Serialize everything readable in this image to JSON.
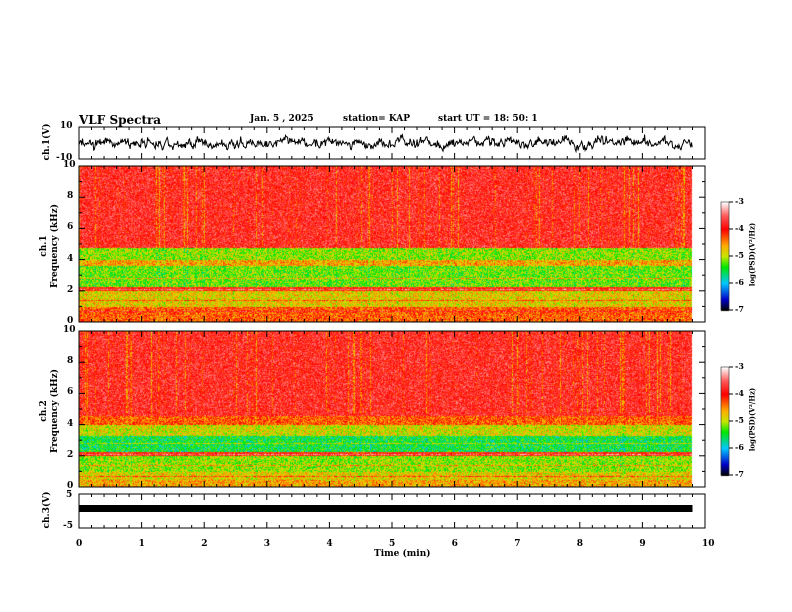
{
  "header": {
    "title": "VLF Spectra",
    "date": "Jan. 5 , 2025",
    "station": "station= KAP",
    "start": "start  UT =   18: 50: 1"
  },
  "colors": {
    "waveform": "#000000",
    "axis": "#000000"
  },
  "chart_data": [
    {
      "type": "line",
      "name": "ch1 waveform",
      "ylabel": "ch.1(V)",
      "ylim": [
        -10,
        10
      ],
      "yticks": [
        "10",
        "-10"
      ],
      "xlim": [
        0,
        10
      ],
      "data_end_min": 9.8,
      "description_values": "noisy signal centred near 2 V, amplitude about ±5 V"
    },
    {
      "type": "heatmap",
      "name": "ch1 spectrogram",
      "ylabel": "ch.1\nFrequency (kHz)",
      "ylim": [
        0,
        10
      ],
      "yticks": [
        "0",
        "2",
        "4",
        "6",
        "8",
        "10"
      ],
      "xlim": [
        0,
        10
      ],
      "colorbar": {
        "label": "log(PSD)(V²/Hz)",
        "range": [
          -7,
          -3
        ],
        "ticks": [
          "-3",
          "-4",
          "-5",
          "-6",
          "-7"
        ]
      },
      "bands": [
        {
          "f": [
            0,
            0.5
          ],
          "level": -4.3
        },
        {
          "f": [
            0.5,
            1
          ],
          "level": -4.3
        },
        {
          "f": [
            1,
            2
          ],
          "level": -4.8
        },
        {
          "f": [
            2,
            2.3
          ],
          "level": -4.0
        },
        {
          "f": [
            2.3,
            3.6
          ],
          "level": -5.2
        },
        {
          "f": [
            3.6,
            4.0
          ],
          "level": -4.6
        },
        {
          "f": [
            4.0,
            4.8
          ],
          "level": -5.1
        },
        {
          "f": [
            4.8,
            10
          ],
          "level": -3.8
        }
      ]
    },
    {
      "type": "heatmap",
      "name": "ch2 spectrogram",
      "ylabel": "ch.2\nFrequency (kHz)",
      "ylim": [
        0,
        10
      ],
      "yticks": [
        "0",
        "2",
        "4",
        "6",
        "8",
        "10"
      ],
      "xlim": [
        0,
        10
      ],
      "colorbar": {
        "label": "log(PSD)(V²/Hz)",
        "range": [
          -7,
          -3
        ],
        "ticks": [
          "-3",
          "-4",
          "-5",
          "-6",
          "-7"
        ]
      },
      "bands": [
        {
          "f": [
            0,
            0.5
          ],
          "level": -4.6
        },
        {
          "f": [
            0.5,
            1
          ],
          "level": -4.8
        },
        {
          "f": [
            1,
            2
          ],
          "level": -5.1
        },
        {
          "f": [
            2,
            2.3
          ],
          "level": -4.0
        },
        {
          "f": [
            2.3,
            3.3
          ],
          "level": -5.5
        },
        {
          "f": [
            3.3,
            4.0
          ],
          "level": -4.9
        },
        {
          "f": [
            4.0,
            4.6
          ],
          "level": -4.3
        },
        {
          "f": [
            4.6,
            10
          ],
          "level": -3.8
        }
      ]
    },
    {
      "type": "line",
      "name": "ch3 waveform",
      "ylabel": "ch.3(V)",
      "ylim": [
        -5,
        5
      ],
      "yticks": [
        "5",
        "-5"
      ],
      "xlim": [
        0,
        10
      ],
      "data_end_min": 9.8,
      "constant_value": 1
    },
    {
      "type": "axis",
      "xlabel": "Time (min)",
      "xticks": [
        "0",
        "1",
        "2",
        "3",
        "4",
        "5",
        "6",
        "7",
        "8",
        "9",
        "10"
      ]
    }
  ]
}
